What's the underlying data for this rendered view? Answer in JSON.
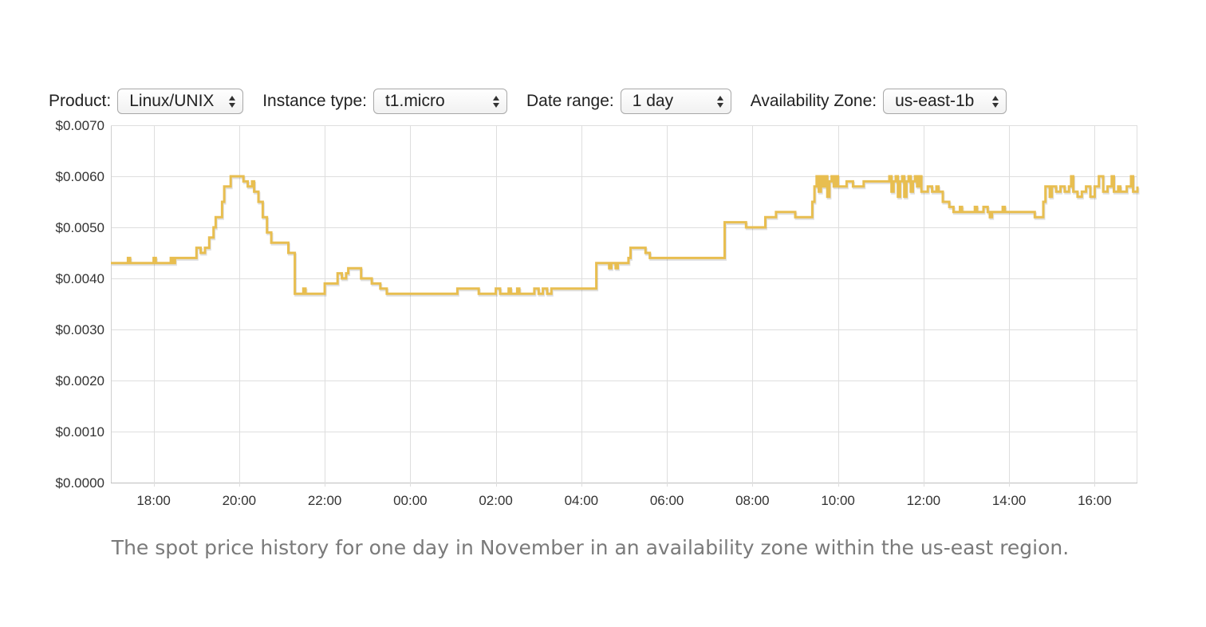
{
  "filters": {
    "product": {
      "label": "Product:",
      "value": "Linux/UNIX"
    },
    "instance_type": {
      "label": "Instance type:",
      "value": "t1.micro"
    },
    "date_range": {
      "label": "Date range:",
      "value": "1 day"
    },
    "availability_zone": {
      "label": "Availability Zone:",
      "value": "us-east-1b"
    }
  },
  "caption": "The spot price history for one day in November in an availability zone within the us-east region.",
  "chart_data": {
    "type": "line",
    "title": "",
    "xlabel": "",
    "ylabel": "",
    "x_unit": "hours",
    "xlim": [
      17.0,
      41.0
    ],
    "ylim": [
      0,
      0.007
    ],
    "yticks": [
      0,
      0.001,
      0.002,
      0.003,
      0.004,
      0.005,
      0.006,
      0.007
    ],
    "ytick_labels": [
      "$0.0000",
      "$0.0010",
      "$0.0020",
      "$0.0030",
      "$0.0040",
      "$0.0050",
      "$0.0060",
      "$0.0070"
    ],
    "xticks": [
      18,
      20,
      22,
      24,
      26,
      28,
      30,
      32,
      34,
      36,
      38,
      40
    ],
    "xtick_labels": [
      "18:00",
      "20:00",
      "22:00",
      "00:00",
      "02:00",
      "04:00",
      "06:00",
      "08:00",
      "10:00",
      "12:00",
      "14:00",
      "16:00"
    ],
    "grid": true,
    "line_color": "#e8be50",
    "series": [
      {
        "step": true,
        "points": [
          [
            17.0,
            0.0043
          ],
          [
            17.4,
            0.0044
          ],
          [
            17.45,
            0.0043
          ],
          [
            18.0,
            0.0044
          ],
          [
            18.05,
            0.0043
          ],
          [
            18.4,
            0.0044
          ],
          [
            18.45,
            0.0043
          ],
          [
            18.5,
            0.0044
          ],
          [
            19.0,
            0.0046
          ],
          [
            19.1,
            0.0045
          ],
          [
            19.2,
            0.0046
          ],
          [
            19.3,
            0.0048
          ],
          [
            19.4,
            0.005
          ],
          [
            19.45,
            0.0052
          ],
          [
            19.6,
            0.0055
          ],
          [
            19.65,
            0.0058
          ],
          [
            19.8,
            0.006
          ],
          [
            20.1,
            0.0059
          ],
          [
            20.2,
            0.0058
          ],
          [
            20.3,
            0.0059
          ],
          [
            20.35,
            0.0057
          ],
          [
            20.45,
            0.0055
          ],
          [
            20.55,
            0.0052
          ],
          [
            20.65,
            0.0049
          ],
          [
            20.75,
            0.0047
          ],
          [
            21.15,
            0.0045
          ],
          [
            21.3,
            0.0037
          ],
          [
            21.5,
            0.0038
          ],
          [
            21.55,
            0.0037
          ],
          [
            22.0,
            0.0039
          ],
          [
            22.3,
            0.0041
          ],
          [
            22.4,
            0.004
          ],
          [
            22.5,
            0.0041
          ],
          [
            22.55,
            0.0042
          ],
          [
            22.85,
            0.004
          ],
          [
            23.1,
            0.0039
          ],
          [
            23.3,
            0.0038
          ],
          [
            23.45,
            0.0037
          ],
          [
            25.1,
            0.0038
          ],
          [
            25.6,
            0.0037
          ],
          [
            26.0,
            0.0038
          ],
          [
            26.1,
            0.0037
          ],
          [
            26.3,
            0.0038
          ],
          [
            26.35,
            0.0037
          ],
          [
            26.5,
            0.0038
          ],
          [
            26.55,
            0.0037
          ],
          [
            26.9,
            0.0038
          ],
          [
            27.0,
            0.0037
          ],
          [
            27.1,
            0.0038
          ],
          [
            27.2,
            0.0037
          ],
          [
            27.3,
            0.0038
          ],
          [
            28.35,
            0.0043
          ],
          [
            28.65,
            0.0042
          ],
          [
            28.7,
            0.0043
          ],
          [
            28.8,
            0.0042
          ],
          [
            28.85,
            0.0043
          ],
          [
            29.1,
            0.0044
          ],
          [
            29.15,
            0.0046
          ],
          [
            29.5,
            0.0045
          ],
          [
            29.6,
            0.0044
          ],
          [
            31.35,
            0.0051
          ],
          [
            31.85,
            0.005
          ],
          [
            32.3,
            0.0052
          ],
          [
            32.55,
            0.0053
          ],
          [
            33.0,
            0.0052
          ],
          [
            33.4,
            0.0055
          ],
          [
            33.45,
            0.0058
          ],
          [
            33.5,
            0.006
          ],
          [
            33.55,
            0.0057
          ],
          [
            33.6,
            0.006
          ],
          [
            33.65,
            0.0058
          ],
          [
            33.7,
            0.006
          ],
          [
            33.75,
            0.0056
          ],
          [
            33.8,
            0.0059
          ],
          [
            33.85,
            0.006
          ],
          [
            33.9,
            0.0058
          ],
          [
            33.95,
            0.006
          ],
          [
            34.0,
            0.0058
          ],
          [
            34.2,
            0.0059
          ],
          [
            34.35,
            0.0058
          ],
          [
            34.6,
            0.0059
          ],
          [
            35.2,
            0.006
          ],
          [
            35.25,
            0.0057
          ],
          [
            35.3,
            0.0059
          ],
          [
            35.35,
            0.006
          ],
          [
            35.4,
            0.0056
          ],
          [
            35.45,
            0.0059
          ],
          [
            35.5,
            0.006
          ],
          [
            35.55,
            0.0056
          ],
          [
            35.6,
            0.0059
          ],
          [
            35.65,
            0.006
          ],
          [
            35.7,
            0.0057
          ],
          [
            35.75,
            0.0059
          ],
          [
            35.8,
            0.006
          ],
          [
            35.85,
            0.0058
          ],
          [
            35.9,
            0.006
          ],
          [
            35.95,
            0.0057
          ],
          [
            36.1,
            0.0058
          ],
          [
            36.2,
            0.0057
          ],
          [
            36.3,
            0.0058
          ],
          [
            36.35,
            0.0057
          ],
          [
            36.45,
            0.0055
          ],
          [
            36.6,
            0.0054
          ],
          [
            36.7,
            0.0053
          ],
          [
            36.85,
            0.0054
          ],
          [
            36.9,
            0.0053
          ],
          [
            37.2,
            0.0054
          ],
          [
            37.25,
            0.0053
          ],
          [
            37.4,
            0.0054
          ],
          [
            37.5,
            0.0053
          ],
          [
            37.55,
            0.0052
          ],
          [
            37.6,
            0.0053
          ],
          [
            37.85,
            0.0054
          ],
          [
            37.9,
            0.0053
          ],
          [
            38.6,
            0.0052
          ],
          [
            38.8,
            0.0055
          ],
          [
            38.85,
            0.0058
          ],
          [
            38.95,
            0.0056
          ],
          [
            39.0,
            0.0058
          ],
          [
            39.1,
            0.0057
          ],
          [
            39.2,
            0.0058
          ],
          [
            39.3,
            0.0057
          ],
          [
            39.4,
            0.0058
          ],
          [
            39.45,
            0.006
          ],
          [
            39.5,
            0.0057
          ],
          [
            39.6,
            0.0056
          ],
          [
            39.7,
            0.0057
          ],
          [
            39.8,
            0.0058
          ],
          [
            39.9,
            0.0056
          ],
          [
            40.0,
            0.0058
          ],
          [
            40.1,
            0.006
          ],
          [
            40.2,
            0.0057
          ],
          [
            40.3,
            0.0058
          ],
          [
            40.4,
            0.006
          ],
          [
            40.45,
            0.0057
          ],
          [
            40.55,
            0.0058
          ],
          [
            40.6,
            0.0057
          ],
          [
            40.75,
            0.0058
          ],
          [
            40.85,
            0.006
          ],
          [
            40.9,
            0.0057
          ],
          [
            41.0,
            0.0058
          ]
        ]
      }
    ]
  }
}
